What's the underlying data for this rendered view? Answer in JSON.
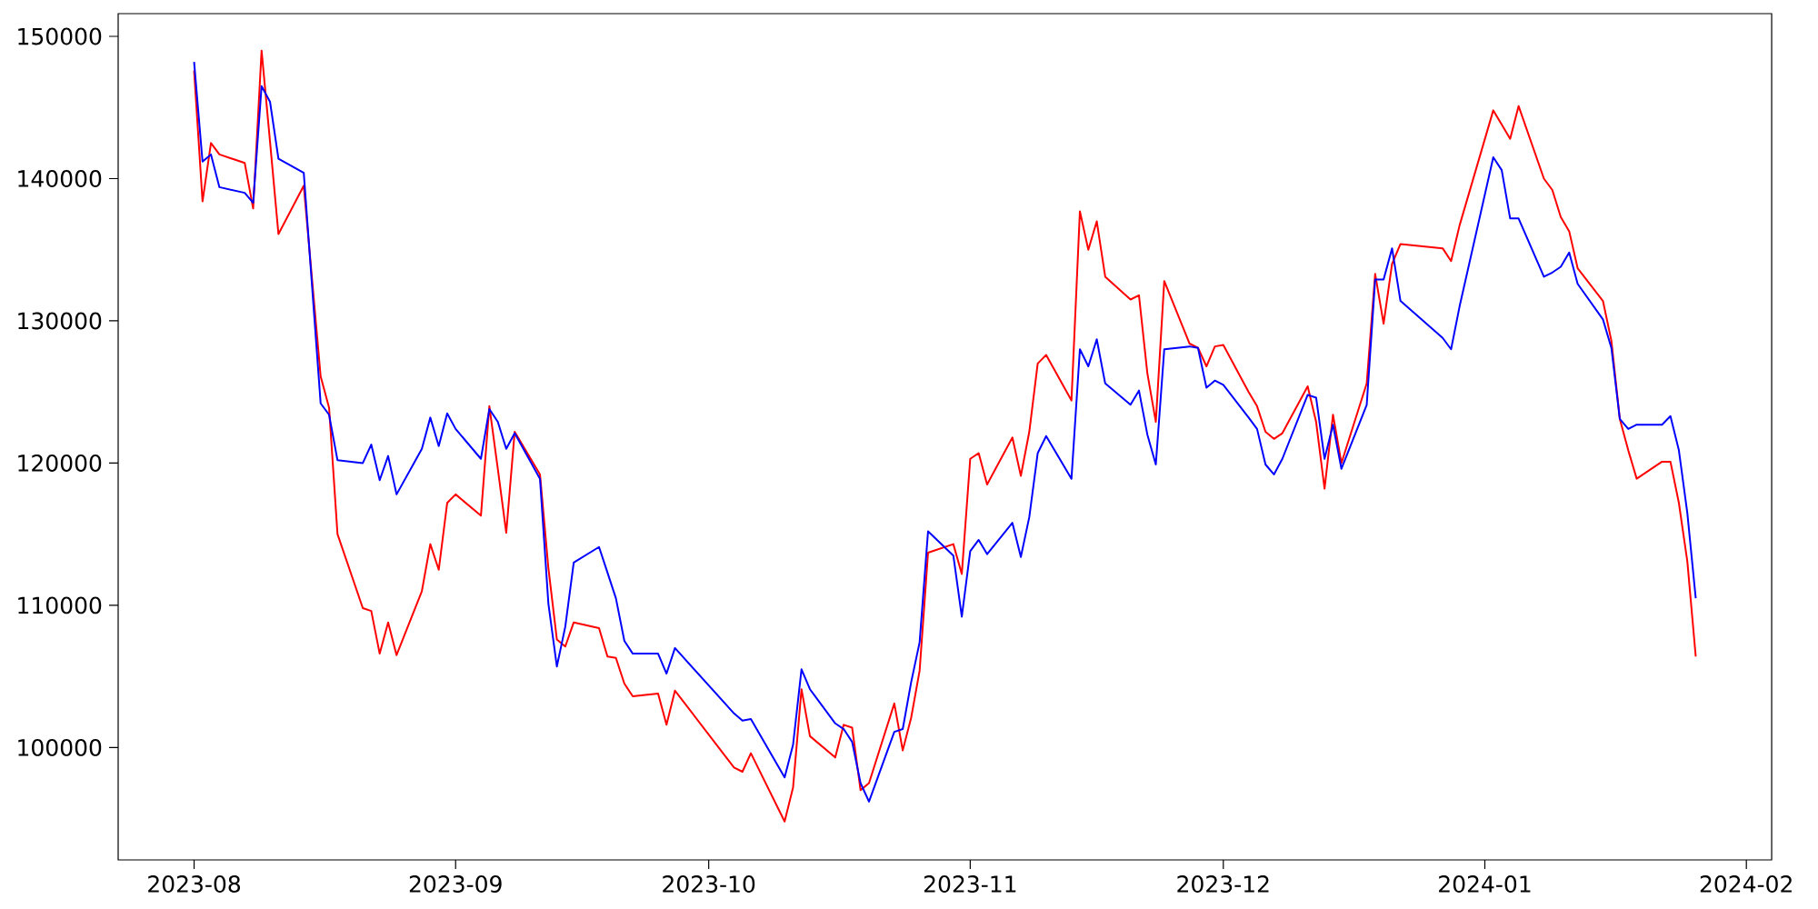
{
  "chart_data": {
    "type": "line",
    "x": [
      "2023-08-01",
      "2023-08-02",
      "2023-08-03",
      "2023-08-04",
      "2023-08-07",
      "2023-08-08",
      "2023-08-09",
      "2023-08-10",
      "2023-08-11",
      "2023-08-14",
      "2023-08-16",
      "2023-08-17",
      "2023-08-18",
      "2023-08-21",
      "2023-08-22",
      "2023-08-23",
      "2023-08-24",
      "2023-08-25",
      "2023-08-28",
      "2023-08-29",
      "2023-08-30",
      "2023-08-31",
      "2023-09-01",
      "2023-09-04",
      "2023-09-05",
      "2023-09-06",
      "2023-09-07",
      "2023-09-08",
      "2023-09-11",
      "2023-09-12",
      "2023-09-13",
      "2023-09-14",
      "2023-09-15",
      "2023-09-18",
      "2023-09-19",
      "2023-09-20",
      "2023-09-21",
      "2023-09-22",
      "2023-09-25",
      "2023-09-26",
      "2023-09-27",
      "2023-10-04",
      "2023-10-05",
      "2023-10-06",
      "2023-10-10",
      "2023-10-11",
      "2023-10-12",
      "2023-10-13",
      "2023-10-16",
      "2023-10-17",
      "2023-10-18",
      "2023-10-19",
      "2023-10-20",
      "2023-10-23",
      "2023-10-24",
      "2023-10-25",
      "2023-10-26",
      "2023-10-27",
      "2023-10-30",
      "2023-10-31",
      "2023-11-01",
      "2023-11-02",
      "2023-11-03",
      "2023-11-06",
      "2023-11-07",
      "2023-11-08",
      "2023-11-09",
      "2023-11-10",
      "2023-11-13",
      "2023-11-14",
      "2023-11-15",
      "2023-11-16",
      "2023-11-17",
      "2023-11-20",
      "2023-11-21",
      "2023-11-22",
      "2023-11-23",
      "2023-11-24",
      "2023-11-27",
      "2023-11-28",
      "2023-11-29",
      "2023-11-30",
      "2023-12-01",
      "2023-12-04",
      "2023-12-05",
      "2023-12-06",
      "2023-12-07",
      "2023-12-08",
      "2023-12-11",
      "2023-12-12",
      "2023-12-13",
      "2023-12-14",
      "2023-12-15",
      "2023-12-18",
      "2023-12-19",
      "2023-12-20",
      "2023-12-21",
      "2023-12-22",
      "2023-12-27",
      "2023-12-28",
      "2023-12-29",
      "2024-01-02",
      "2024-01-03",
      "2024-01-04",
      "2024-01-05",
      "2024-01-08",
      "2024-01-09",
      "2024-01-10",
      "2024-01-11",
      "2024-01-12",
      "2024-01-15",
      "2024-01-16",
      "2024-01-17",
      "2024-01-18",
      "2024-01-19",
      "2024-01-22",
      "2024-01-23",
      "2024-01-24",
      "2024-01-25",
      "2024-01-26"
    ],
    "series": [
      {
        "color": "#ff0000",
        "values": [
          147600,
          138400,
          142500,
          141700,
          141100,
          137900,
          149000,
          142600,
          136100,
          139500,
          126100,
          123900,
          115000,
          109800,
          109600,
          106600,
          108800,
          106500,
          111000,
          114300,
          112500,
          117200,
          117800,
          116300,
          124000,
          119600,
          115100,
          122200,
          119200,
          112600,
          107600,
          107100,
          108800,
          108400,
          106400,
          106300,
          104500,
          103600,
          103800,
          101600,
          104000,
          98600,
          98300,
          99600,
          94800,
          97200,
          104100,
          100800,
          99300,
          101600,
          101400,
          97000,
          97500,
          103100,
          99800,
          102100,
          105400,
          113700,
          114300,
          112200,
          120300,
          120700,
          118500,
          121800,
          119100,
          122200,
          127000,
          127600,
          124400,
          137700,
          135000,
          137000,
          133100,
          131500,
          131800,
          126300,
          122900,
          132800,
          128400,
          128100,
          126800,
          128200,
          128300,
          125000,
          124000,
          122200,
          121700,
          122100,
          125400,
          122900,
          118200,
          123400,
          120000,
          125600,
          133300,
          129800,
          134000,
          135400,
          135100,
          134200,
          136700,
          144800,
          143800,
          142800,
          145100,
          140000,
          139200,
          137300,
          136300,
          133700,
          131400,
          128600,
          123100,
          120900,
          118900,
          120100,
          120100,
          117200,
          113100,
          106400
        ]
      },
      {
        "color": "#0000ff",
        "values": [
          148200,
          141200,
          141700,
          139400,
          139000,
          138300,
          146500,
          145400,
          141400,
          140400,
          124200,
          123400,
          120200,
          120000,
          121300,
          118800,
          120500,
          117800,
          121000,
          123200,
          121200,
          123500,
          122400,
          120300,
          123800,
          122900,
          121000,
          122100,
          118900,
          110100,
          105700,
          108500,
          113000,
          114100,
          112300,
          110500,
          107500,
          106600,
          106600,
          105200,
          107000,
          102400,
          101900,
          102000,
          97900,
          100200,
          105500,
          104100,
          101700,
          101300,
          100400,
          97500,
          96200,
          101100,
          101300,
          104600,
          107400,
          115200,
          113500,
          109200,
          113800,
          114600,
          113600,
          115800,
          113400,
          116200,
          120700,
          121900,
          118900,
          128000,
          126800,
          128700,
          125600,
          124100,
          125100,
          122000,
          119900,
          128000,
          128200,
          128100,
          125300,
          125800,
          125500,
          123200,
          122400,
          119900,
          119200,
          120300,
          124800,
          124600,
          120300,
          122700,
          119600,
          124100,
          132900,
          132900,
          135100,
          131400,
          128800,
          128000,
          131000,
          141500,
          140600,
          137200,
          137200,
          133100,
          133400,
          133800,
          134800,
          132600,
          130100,
          128100,
          123100,
          122400,
          122700,
          122700,
          123300,
          120900,
          116500,
          110500
        ]
      }
    ],
    "xlim": [
      "2023-07-23",
      "2024-02-04"
    ],
    "ylim": [
      92100,
      151600
    ],
    "xticks": [
      "2023-08",
      "2023-09",
      "2023-10",
      "2023-11",
      "2023-12",
      "2024-01",
      "2024-02"
    ],
    "yticks": [
      100000,
      110000,
      120000,
      130000,
      140000,
      150000
    ]
  }
}
